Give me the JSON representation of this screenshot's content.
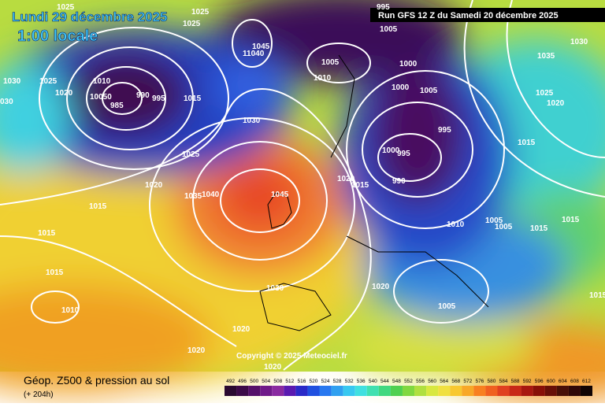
{
  "header": {
    "date": "Lundi 29 décembre 2025",
    "time": "1:00 locale",
    "run": "Run GFS 12 Z du Samedi 20 décembre 2025"
  },
  "footer": {
    "title": "Géop. Z500 & pression au sol",
    "lead": "(+ 204h)",
    "copyright": "Copyright © 2025 Meteociel.fr"
  },
  "scale": {
    "values": [
      492,
      496,
      500,
      504,
      508,
      512,
      516,
      520,
      524,
      528,
      532,
      536,
      540,
      544,
      548,
      552,
      556,
      560,
      564,
      568,
      572,
      576,
      580,
      584,
      588,
      592,
      596,
      600,
      604,
      608,
      612
    ],
    "colors": [
      "#2a0a30",
      "#3c0a48",
      "#55106a",
      "#701a88",
      "#8a2aa0",
      "#5a1ab0",
      "#2a2ac8",
      "#2050e0",
      "#2878f0",
      "#30a0f0",
      "#38c8f0",
      "#40e0e0",
      "#40e0b0",
      "#40d880",
      "#50d050",
      "#80d840",
      "#b0e040",
      "#d8e840",
      "#f0e040",
      "#f8c830",
      "#f8a828",
      "#f88020",
      "#f06020",
      "#e04020",
      "#c82818",
      "#a81810",
      "#881008",
      "#681008",
      "#481008",
      "#300808",
      "#100404"
    ]
  },
  "isobar_labels": [
    "1025",
    "1025",
    "1025",
    "995",
    "1005",
    "1030",
    "1035",
    "1030",
    "1025",
    "1020",
    "1010",
    "10050",
    "985",
    "990",
    "995",
    "1015",
    "1045",
    "11040",
    "1005",
    "1010",
    "1000",
    "1000",
    "1005",
    "1025",
    "1020",
    "1030",
    "995",
    "1015",
    "1025",
    "1000",
    "995",
    "990",
    "1020",
    "1020",
    "1015",
    "1035",
    "1040",
    "1045",
    "1015",
    "1005",
    "1005",
    "1010",
    "1015",
    "1015",
    "1015",
    "1015",
    "1020",
    "1030",
    "1005",
    "1010",
    "1020",
    "1020",
    "1020",
    "1015",
    "030"
  ]
}
